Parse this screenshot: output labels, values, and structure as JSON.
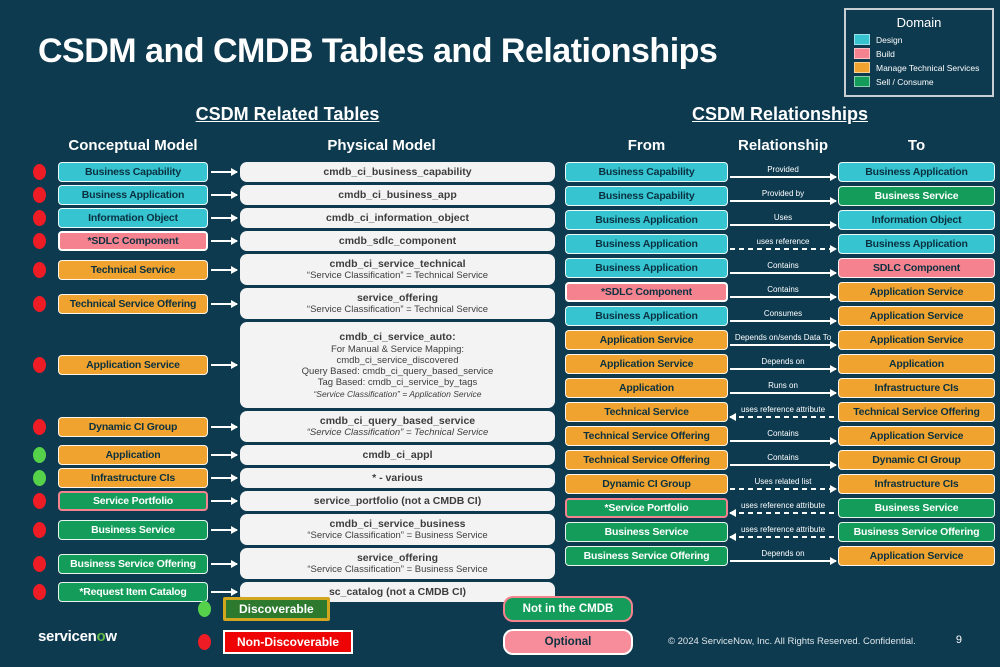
{
  "palette": {
    "background": "#0d3a4f",
    "design": "#35c4d0",
    "build": "#f5828f",
    "manage": "#f0a32e",
    "sell": "#149c5b",
    "red_dot": "#ee1c25",
    "green_dot": "#56d14a",
    "physical_box": "#f3f3f3"
  },
  "title": "CSDM and CMDB Tables and Relationships",
  "domain_legend": {
    "title": "Domain",
    "items": [
      {
        "label": "Design",
        "color": "#35c4d0"
      },
      {
        "label": "Build",
        "color": "#f5828f"
      },
      {
        "label": "Manage Technical Services",
        "color": "#f0a32e"
      },
      {
        "label": "Sell / Consume",
        "color": "#149c5b"
      }
    ]
  },
  "related_tables": {
    "title": "CSDM Related Tables",
    "columns": [
      "Conceptual Model",
      "Physical Model"
    ],
    "rows": [
      {
        "dot": "red",
        "label": "Business Capability",
        "domain": "design",
        "size": 1,
        "physical": [
          {
            "text": "cmdb_ci_business_capability",
            "bold": true
          }
        ]
      },
      {
        "dot": "red",
        "label": "Business Application",
        "domain": "design",
        "size": 1,
        "physical": [
          {
            "text": "cmdb_ci_business_app",
            "bold": true
          }
        ]
      },
      {
        "dot": "red",
        "label": "Information Object",
        "domain": "design",
        "size": 1,
        "physical": [
          {
            "text": "cmdb_ci_information_object",
            "bold": true
          }
        ]
      },
      {
        "dot": "red",
        "label": "*SDLC Component",
        "domain": "build",
        "outline": "white",
        "size": 1,
        "physical": [
          {
            "text": "cmdb_sdlc_component",
            "bold": true
          }
        ]
      },
      {
        "dot": "red",
        "label": "Technical Service",
        "domain": "manage",
        "size": 2,
        "physical": [
          {
            "text": "cmdb_ci_service_technical",
            "bold": true
          },
          {
            "text": "“Service Classification” = Technical Service"
          }
        ]
      },
      {
        "dot": "red",
        "label": "Technical Service Offering",
        "domain": "manage",
        "size": 2,
        "physical": [
          {
            "text": "service_offering",
            "bold": true
          },
          {
            "text": "“Service Classification” = Technical Service"
          }
        ]
      },
      {
        "dot": "red",
        "label": "Application Service",
        "domain": "manage",
        "size": 6,
        "physical": [
          {
            "text": "cmdb_ci_service_auto:",
            "bold": true
          },
          {
            "text": "For Manual & Service Mapping:"
          },
          {
            "text": "cmdb_ci_service_discovered"
          },
          {
            "text": "Query Based: cmdb_ci_query_based_service"
          },
          {
            "text": "Tag Based: cmdb_ci_service_by_tags"
          },
          {
            "text": "“Service Classification” = Application Service",
            "italic": true,
            "small": true
          }
        ]
      },
      {
        "dot": "red",
        "label": "Dynamic CI Group",
        "domain": "manage",
        "size": 2,
        "physical": [
          {
            "text": "cmdb_ci_query_based_service",
            "bold": true
          },
          {
            "text": "“Service Classification” = Technical Service",
            "italic": true
          }
        ]
      },
      {
        "dot": "green",
        "label": "Application",
        "domain": "manage",
        "size": 1,
        "physical": [
          {
            "text": "cmdb_ci_appl",
            "bold": true
          }
        ]
      },
      {
        "dot": "green",
        "label": "Infrastructure CIs",
        "domain": "manage",
        "size": 1,
        "physical": [
          {
            "text": "* - various",
            "bold": true
          }
        ]
      },
      {
        "dot": "red",
        "label": "Service Portfolio",
        "domain": "sell",
        "outline": "pink",
        "size": 1,
        "physical": [
          {
            "text": "service_portfolio (not a CMDB CI)",
            "bold": true
          }
        ]
      },
      {
        "dot": "red",
        "label": "Business Service",
        "domain": "sell",
        "size": 2,
        "physical": [
          {
            "text": "cmdb_ci_service_business",
            "bold": true
          },
          {
            "text": "“Service Classification” = Business Service"
          }
        ]
      },
      {
        "dot": "red",
        "label": "Business Service Offering",
        "domain": "sell",
        "size": 2,
        "physical": [
          {
            "text": "service_offering",
            "bold": true
          },
          {
            "text": "“Service Classification” = Business Service"
          }
        ]
      },
      {
        "dot": "red",
        "label": "*Request Item Catalog",
        "domain": "sell",
        "size": 1,
        "physical": [
          {
            "text": "sc_catalog (not a CMDB CI)",
            "bold": true
          }
        ]
      }
    ]
  },
  "relationships": {
    "title": "CSDM Relationships",
    "columns": [
      "From",
      "Relationship",
      "To"
    ],
    "rows": [
      {
        "from": {
          "label": "Business Capability",
          "domain": "design"
        },
        "rel": {
          "label": "Provided",
          "line": "solid",
          "dir": "right"
        },
        "to": {
          "label": "Business Application",
          "domain": "design"
        }
      },
      {
        "from": {
          "label": "Business Capability",
          "domain": "design"
        },
        "rel": {
          "label": "Provided by",
          "line": "solid",
          "dir": "right"
        },
        "to": {
          "label": "Business Service",
          "domain": "sell"
        }
      },
      {
        "from": {
          "label": "Business Application",
          "domain": "design"
        },
        "rel": {
          "label": "Uses",
          "line": "solid",
          "dir": "right"
        },
        "to": {
          "label": "Information Object",
          "domain": "design"
        }
      },
      {
        "from": {
          "label": "Business Application",
          "domain": "design"
        },
        "rel": {
          "label": "uses reference",
          "line": "dashed",
          "dir": "right"
        },
        "to": {
          "label": "Business Application",
          "domain": "design"
        }
      },
      {
        "from": {
          "label": "Business Application",
          "domain": "design"
        },
        "rel": {
          "label": "Contains",
          "line": "solid",
          "dir": "right"
        },
        "to": {
          "label": "SDLC Component",
          "domain": "build"
        }
      },
      {
        "from": {
          "label": "*SDLC Component",
          "domain": "build",
          "outline": "white"
        },
        "rel": {
          "label": "Contains",
          "line": "solid",
          "dir": "right"
        },
        "to": {
          "label": "Application Service",
          "domain": "manage"
        }
      },
      {
        "from": {
          "label": "Business Application",
          "domain": "design"
        },
        "rel": {
          "label": "Consumes",
          "line": "solid",
          "dir": "right"
        },
        "to": {
          "label": "Application Service",
          "domain": "manage"
        }
      },
      {
        "from": {
          "label": "Application Service",
          "domain": "manage"
        },
        "rel": {
          "label": "Depends on/sends Data To",
          "line": "solid",
          "dir": "right"
        },
        "to": {
          "label": "Application Service",
          "domain": "manage"
        }
      },
      {
        "from": {
          "label": "Application Service",
          "domain": "manage"
        },
        "rel": {
          "label": "Depends on",
          "line": "solid",
          "dir": "right"
        },
        "to": {
          "label": "Application",
          "domain": "manage"
        }
      },
      {
        "from": {
          "label": "Application",
          "domain": "manage"
        },
        "rel": {
          "label": "Runs on",
          "line": "solid",
          "dir": "right"
        },
        "to": {
          "label": "Infrastructure CIs",
          "domain": "manage"
        }
      },
      {
        "from": {
          "label": "Technical Service",
          "domain": "manage"
        },
        "rel": {
          "label": "uses reference attribute",
          "line": "dashed",
          "dir": "left"
        },
        "to": {
          "label": "Technical Service Offering",
          "domain": "manage"
        }
      },
      {
        "from": {
          "label": "Technical Service Offering",
          "domain": "manage"
        },
        "rel": {
          "label": "Contains",
          "line": "solid",
          "dir": "right"
        },
        "to": {
          "label": "Application Service",
          "domain": "manage"
        }
      },
      {
        "from": {
          "label": "Technical Service Offering",
          "domain": "manage"
        },
        "rel": {
          "label": "Contains",
          "line": "solid",
          "dir": "right"
        },
        "to": {
          "label": "Dynamic CI Group",
          "domain": "manage"
        }
      },
      {
        "from": {
          "label": "Dynamic CI Group",
          "domain": "manage"
        },
        "rel": {
          "label": "Uses related list",
          "line": "dashed",
          "dir": "right"
        },
        "to": {
          "label": "Infrastructure CIs",
          "domain": "manage"
        }
      },
      {
        "from": {
          "label": "*Service Portfolio",
          "domain": "sell",
          "outline": "pink"
        },
        "rel": {
          "label": "uses reference attribute",
          "line": "dashed",
          "dir": "left"
        },
        "to": {
          "label": "Business Service",
          "domain": "sell"
        }
      },
      {
        "from": {
          "label": "Business Service",
          "domain": "sell"
        },
        "rel": {
          "label": "uses reference attribute",
          "line": "dashed",
          "dir": "left"
        },
        "to": {
          "label": "Business Service Offering",
          "domain": "sell"
        }
      },
      {
        "from": {
          "label": "Business Service Offering",
          "domain": "sell"
        },
        "rel": {
          "label": "Depends on",
          "line": "solid",
          "dir": "right"
        },
        "to": {
          "label": "Application Service",
          "domain": "manage"
        }
      }
    ]
  },
  "bottom_legend": {
    "discoverable": {
      "label": "Discoverable",
      "dot": "green"
    },
    "non_discoverable": {
      "label": "Non-Discoverable",
      "dot": "red"
    },
    "not_in_cmdb": {
      "label": "Not in the CMDB"
    },
    "optional": {
      "label": "Optional"
    }
  },
  "footer": {
    "logo_pre": "servicen",
    "logo_o": "o",
    "logo_post": "w",
    "copyright": "© 2024 ServiceNow, Inc. All Rights Reserved. Confidential.",
    "page": "9"
  }
}
